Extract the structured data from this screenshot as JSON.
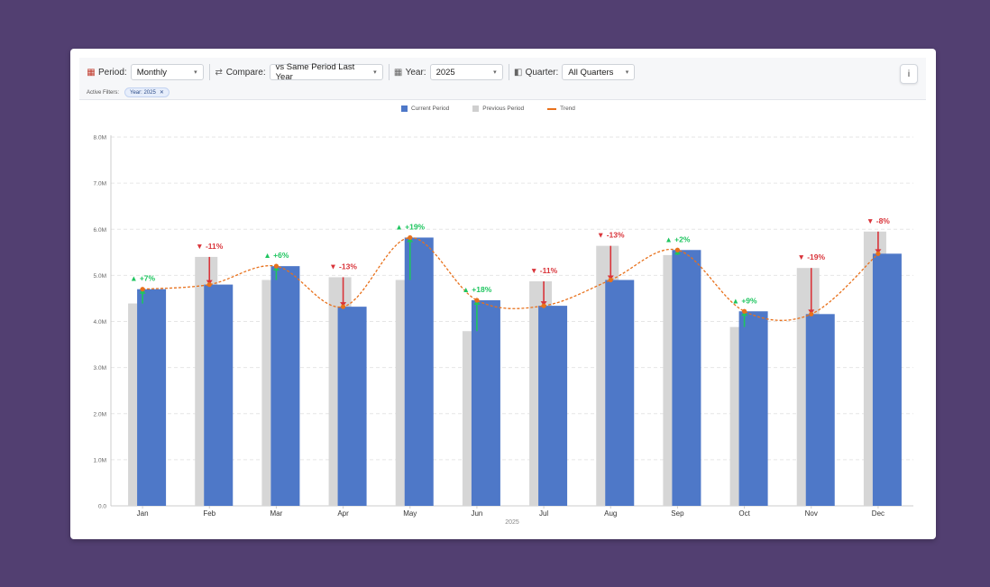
{
  "toolbar": {
    "period": {
      "label": "Period:",
      "value": "Monthly",
      "icon": "calendar-icon"
    },
    "compare": {
      "label": "Compare:",
      "value": "vs Same Period Last Year",
      "icon": "swap-arrows-icon"
    },
    "year": {
      "label": "Year:",
      "value": "2025",
      "icon": "calendar-icon"
    },
    "quarter": {
      "label": "Quarter:",
      "value": "All Quarters",
      "icon": "quarter-icon"
    },
    "active_filters_label": "Active Filters:",
    "active_filter_chip": "Year: 2025",
    "info_label": "i"
  },
  "legend": {
    "current": "Current Period",
    "previous": "Previous Period",
    "trend": "Trend"
  },
  "colors": {
    "current": "#4e78c8",
    "previous": "#d6d6d6",
    "trend": "#e8711c",
    "up": "#1ec55f",
    "down": "#d9343a"
  },
  "chart_data": {
    "type": "bar",
    "xlabel": "2025",
    "ylabel": "",
    "ylim": [
      0,
      8000000
    ],
    "yticks": [
      "0.0",
      "1.0M",
      "2.0M",
      "3.0M",
      "4.0M",
      "5.0M",
      "6.0M",
      "7.0M",
      "8.0M"
    ],
    "grid": true,
    "legend_position": "top-center",
    "categories": [
      "Jan",
      "Feb",
      "Mar",
      "Apr",
      "May",
      "Jun",
      "Jul",
      "Aug",
      "Sep",
      "Oct",
      "Nov",
      "Dec"
    ],
    "series": [
      {
        "name": "Current Period",
        "values": [
          4700000,
          4800000,
          5200000,
          4320000,
          5820000,
          4460000,
          4340000,
          4900000,
          5550000,
          4220000,
          4160000,
          5470000
        ]
      },
      {
        "name": "Previous Period",
        "values": [
          4390000,
          5400000,
          4900000,
          4960000,
          4900000,
          3790000,
          4870000,
          5640000,
          5440000,
          3880000,
          5160000,
          5950000
        ]
      },
      {
        "name": "Trend",
        "values": [
          4700000,
          4800000,
          5200000,
          4320000,
          5820000,
          4460000,
          4340000,
          4900000,
          5550000,
          4220000,
          4160000,
          5470000
        ]
      }
    ],
    "changes": [
      "+7%",
      "-11%",
      "+6%",
      "-13%",
      "+19%",
      "+18%",
      "-11%",
      "-13%",
      "+2%",
      "+9%",
      "-19%",
      "-8%"
    ]
  }
}
